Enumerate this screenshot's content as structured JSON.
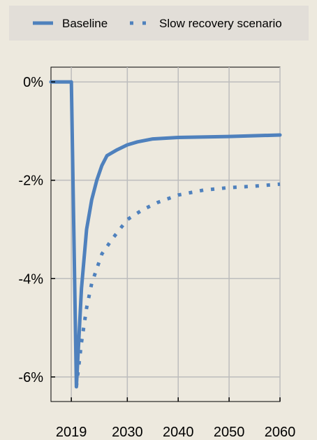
{
  "chart_data": {
    "type": "line",
    "title": "",
    "xlabel": "",
    "ylabel": "",
    "xlim": [
      2015,
      2060
    ],
    "ylim": [
      -6.5,
      0.3
    ],
    "x_ticks": [
      2019,
      2030,
      2040,
      2050,
      2060
    ],
    "x_tick_labels": [
      "2019",
      "2030",
      "2040",
      "2050",
      "2060"
    ],
    "y_ticks": [
      0,
      -2,
      -4,
      -6
    ],
    "y_tick_labels": [
      "0%",
      "-2%",
      "-4%",
      "-6%"
    ],
    "grid": true,
    "legend_position": "top",
    "series": [
      {
        "name": "Baseline",
        "style": "solid",
        "color": "#4f81bd",
        "x": [
          2015,
          2019,
          2020,
          2021,
          2022,
          2023,
          2024,
          2025,
          2026,
          2028,
          2030,
          2032,
          2035,
          2040,
          2050,
          2060
        ],
        "y": [
          0,
          0,
          -6.2,
          -4.2,
          -3.0,
          -2.4,
          -2.0,
          -1.7,
          -1.5,
          -1.38,
          -1.28,
          -1.22,
          -1.16,
          -1.13,
          -1.11,
          -1.08
        ]
      },
      {
        "name": "Slow recovery scenario",
        "style": "dotted",
        "color": "#4f81bd",
        "x": [
          2020,
          2021,
          2022,
          2023,
          2025,
          2027,
          2030,
          2033,
          2036,
          2040,
          2045,
          2050,
          2055,
          2060
        ],
        "y": [
          -6.2,
          -5.3,
          -4.6,
          -4.1,
          -3.5,
          -3.2,
          -2.8,
          -2.6,
          -2.45,
          -2.3,
          -2.2,
          -2.15,
          -2.12,
          -2.08
        ]
      }
    ]
  }
}
